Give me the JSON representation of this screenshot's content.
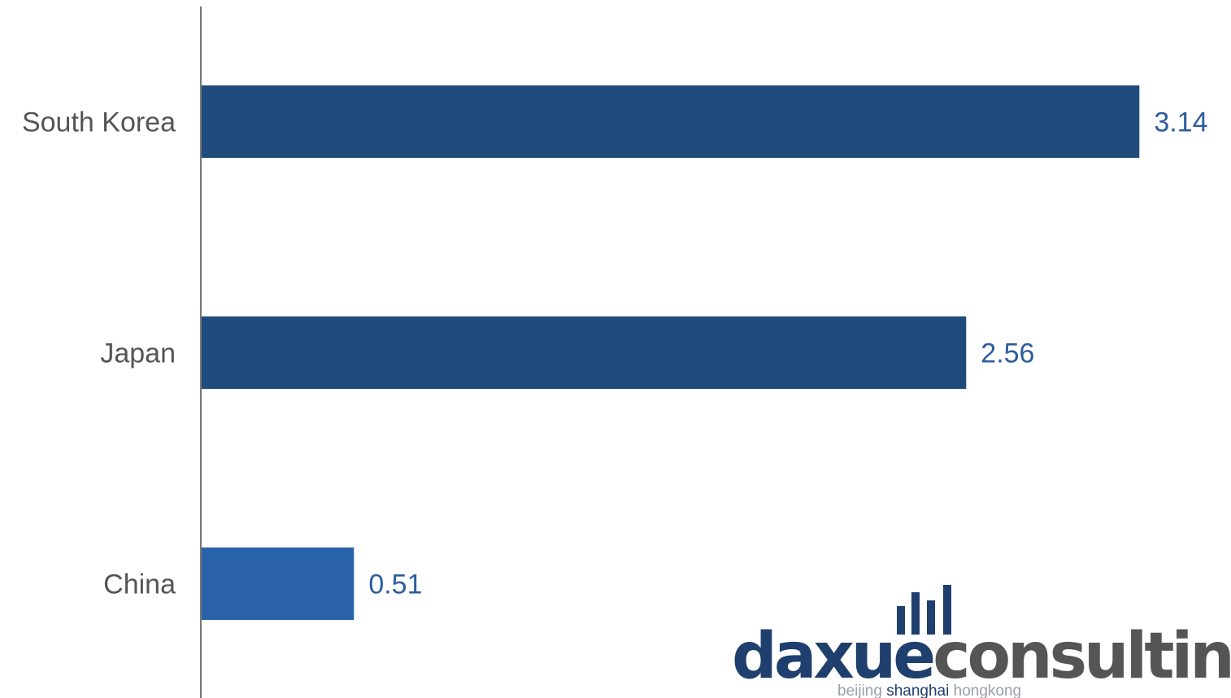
{
  "chart_data": {
    "type": "bar",
    "orientation": "horizontal",
    "categories": [
      "South Korea",
      "Japan",
      "China"
    ],
    "values": [
      3.14,
      2.56,
      0.51
    ],
    "value_labels": [
      "3.14",
      "2.56",
      "0.51"
    ],
    "bar_colors": [
      "#1f4a7c",
      "#1f4a7c",
      "#2a62aa"
    ],
    "label_color": "#2e5d9e",
    "title": "",
    "xlabel": "",
    "ylabel": "",
    "xlim": [
      0,
      3.4
    ],
    "grid": false,
    "legend": "none"
  },
  "logo": {
    "part1": "daxue",
    "part2": "consulting",
    "tagline_part1": "beijing",
    "tagline_part2": "shanghai",
    "tagline_part3": "hongkong",
    "color_dark": "#1f3f6e",
    "color_gray": "#555555",
    "color_light": "#9aa0a8"
  }
}
